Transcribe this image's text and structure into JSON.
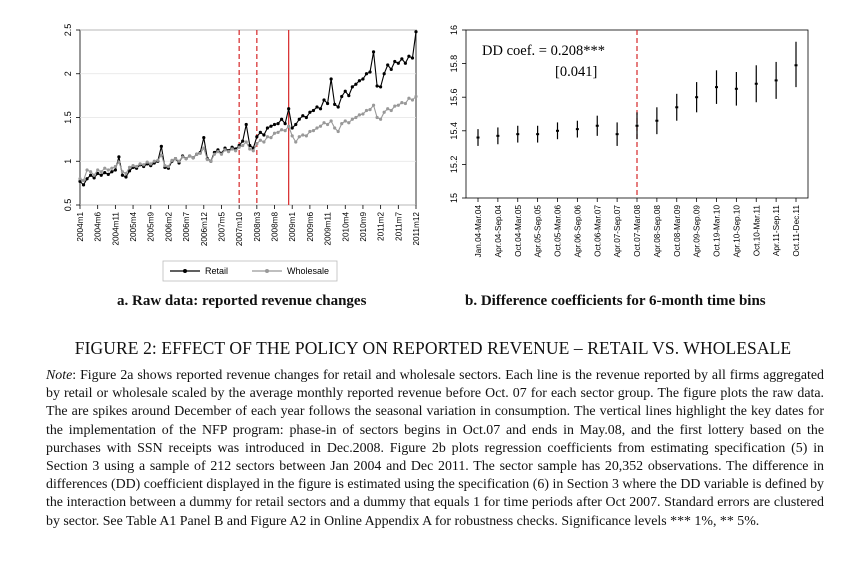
{
  "figure": {
    "title_prefix": "FIGURE 2:",
    "title_text": "EFFECT OF THE POLICY ON REPORTED REVENUE – RETAIL VS. WHOLESALE",
    "note_label": "Note",
    "note_text": ": Figure 2a shows reported revenue changes for retail and wholesale sectors. Each line is the revenue reported by all firms aggregated by retail or wholesale scaled by the average monthly reported revenue before Oct. 07 for each sector group. The figure plots the raw data. The are spikes around December of each year follows the seasonal variation in consumption. The vertical lines highlight the key dates for the implementation of the NFP program: phase-in of sectors begins in Oct.07 and ends in May.08, and the first lottery based on the purchases with SSN receipts was introduced in Dec.2008. Figure 2b plots regression coefficients from estimating specification (5) in Section 3 using a sample of 212 sectors between Jan 2004 and Dec 2011. The sector sample has 20,352 observations. The difference in differences (DD) coefficient displayed in the figure is estimated using the specification (6) in Section 3 where the DD variable is defined by the interaction between a dummy for retail sectors and a dummy that equals 1 for time periods after Oct 2007. Standard errors are clustered by sector. See Table A1 Panel B and Figure A2 in Online Appendix A for robustness checks. Significance levels *** 1%, ** 5%."
  },
  "panel_a": {
    "caption": "a.   Raw data: reported revenue changes"
  },
  "panel_b": {
    "caption": "b. Difference coefficients for 6-month time bins",
    "annotation_line1": "DD coef. = 0.208***",
    "annotation_line2": "[0.041]"
  },
  "chart_data": [
    {
      "type": "line",
      "title": "a. Raw data: reported revenue changes",
      "ylim": [
        0.5,
        2.5
      ],
      "y_ticks": [
        "0.5",
        "1",
        "1.5",
        "2",
        "2.5"
      ],
      "x_tick_labels": [
        "2004m1",
        "2004m6",
        "2004m11",
        "2005m4",
        "2005m9",
        "2006m2",
        "2006m7",
        "2006m12",
        "2007m5",
        "2007m10",
        "2008m3",
        "2008m8",
        "2009m1",
        "2009m6",
        "2009m11",
        "2010m4",
        "2010m9",
        "2011m2",
        "2011m7",
        "2011m12"
      ],
      "vertical_lines": [
        {
          "month": 45,
          "label": "2007m10",
          "style": "dashed",
          "color": "#d62728"
        },
        {
          "month": 50,
          "label": "2008m3",
          "style": "dashed",
          "color": "#d62728"
        },
        {
          "month": 59,
          "label": "2008m12",
          "style": "solid",
          "color": "#d62728"
        }
      ],
      "x_range": [
        0,
        95
      ],
      "legend": "bottom",
      "grid": true,
      "series": [
        {
          "name": "Retail",
          "color": "#000000",
          "values": [
            0.77,
            0.73,
            0.8,
            0.84,
            0.81,
            0.86,
            0.84,
            0.87,
            0.85,
            0.88,
            0.9,
            1.05,
            0.84,
            0.82,
            0.89,
            0.93,
            0.92,
            0.96,
            0.94,
            0.97,
            0.95,
            0.98,
            1.0,
            1.17,
            0.93,
            0.92,
            1.0,
            1.03,
            0.98,
            1.06,
            1.03,
            1.06,
            1.04,
            1.08,
            1.1,
            1.27,
            1.03,
            1.0,
            1.1,
            1.13,
            1.09,
            1.15,
            1.12,
            1.16,
            1.14,
            1.18,
            1.23,
            1.42,
            1.18,
            1.15,
            1.28,
            1.33,
            1.3,
            1.38,
            1.4,
            1.42,
            1.43,
            1.48,
            1.43,
            1.6,
            1.38,
            1.42,
            1.48,
            1.52,
            1.5,
            1.56,
            1.58,
            1.62,
            1.6,
            1.7,
            1.66,
            1.94,
            1.65,
            1.62,
            1.74,
            1.8,
            1.75,
            1.85,
            1.88,
            1.92,
            1.94,
            2.0,
            2.02,
            2.25,
            1.86,
            1.85,
            2.0,
            2.1,
            2.05,
            2.14,
            2.12,
            2.17,
            2.12,
            2.2,
            2.18,
            2.48
          ]
        },
        {
          "name": "Wholesale",
          "color": "#999999",
          "values": [
            0.8,
            0.78,
            0.9,
            0.88,
            0.84,
            0.9,
            0.88,
            0.92,
            0.9,
            0.92,
            0.94,
            0.99,
            0.88,
            0.86,
            0.93,
            0.95,
            0.94,
            0.97,
            0.96,
            0.99,
            0.97,
            1.0,
            1.01,
            1.07,
            0.95,
            0.94,
            1.01,
            1.03,
            1.0,
            1.05,
            1.03,
            1.06,
            1.04,
            1.08,
            1.09,
            1.15,
            1.02,
            1.0,
            1.08,
            1.11,
            1.08,
            1.13,
            1.11,
            1.14,
            1.12,
            1.16,
            1.18,
            1.22,
            1.14,
            1.12,
            1.2,
            1.24,
            1.22,
            1.28,
            1.27,
            1.32,
            1.33,
            1.36,
            1.35,
            1.4,
            1.29,
            1.22,
            1.28,
            1.3,
            1.29,
            1.34,
            1.35,
            1.38,
            1.4,
            1.44,
            1.42,
            1.46,
            1.38,
            1.34,
            1.43,
            1.46,
            1.44,
            1.48,
            1.5,
            1.53,
            1.54,
            1.58,
            1.59,
            1.64,
            1.5,
            1.48,
            1.56,
            1.6,
            1.58,
            1.63,
            1.64,
            1.67,
            1.66,
            1.72,
            1.7,
            1.74
          ]
        }
      ]
    },
    {
      "type": "scatter",
      "title": "b. Difference coefficients for 6-month time bins",
      "ylim": [
        15,
        16
      ],
      "y_ticks": [
        "15",
        "15.2",
        "15.4",
        "15.6",
        "15.8",
        "16"
      ],
      "categories": [
        "Jan.04-Mar.04",
        "Apr.04-Sep.04",
        "Oct.04-Mar.05",
        "Apr.05-Sep.05",
        "Oct.05-Mar.06",
        "Apr.06-Sep.06",
        "Oct.06-Mar.07",
        "Apr.07-Sep.07",
        "Oct.07-Mar.08",
        "Apr.08-Sep.08",
        "Oct.08-Mar.09",
        "Apr.09-Sep.09",
        "Oct.19-Mar.10",
        "Apr.10-Sep.10",
        "Oct.10-Mar.11",
        "Apr.11-Sep.11",
        "Oct.11-Dec.11"
      ],
      "vertical_line": {
        "category": "Oct.07-Mar.08",
        "style": "dashed",
        "color": "#d62728"
      },
      "series": [
        {
          "name": "Difference coefficient",
          "values": [
            15.36,
            15.37,
            15.38,
            15.38,
            15.4,
            15.41,
            15.43,
            15.38,
            15.43,
            15.46,
            15.54,
            15.6,
            15.66,
            15.65,
            15.68,
            15.7,
            15.79
          ],
          "ci_low": [
            15.31,
            15.32,
            15.33,
            15.33,
            15.35,
            15.36,
            15.37,
            15.31,
            15.35,
            15.38,
            15.46,
            15.51,
            15.56,
            15.55,
            15.57,
            15.59,
            15.66
          ],
          "ci_high": [
            15.41,
            15.42,
            15.43,
            15.43,
            15.45,
            15.46,
            15.49,
            15.45,
            15.51,
            15.54,
            15.62,
            15.69,
            15.76,
            15.75,
            15.79,
            15.81,
            15.93
          ]
        }
      ]
    }
  ]
}
